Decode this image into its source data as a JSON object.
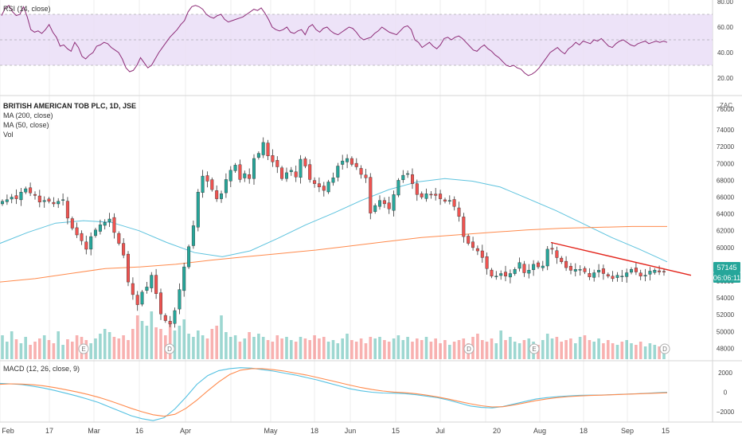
{
  "symbol_title": "BRITISH AMERICAN TOB PLC, 1D, JSE",
  "currency": "ZAC",
  "indicators": {
    "rsi_label": "RSI (14, close)",
    "ma200_label": "MA (200, close)",
    "ma50_label": "MA (50, close)",
    "vol_label": "Vol",
    "macd_label": "MACD (12, 26, close, 9)"
  },
  "last_price": "57145",
  "countdown": "06:06:11",
  "colors": {
    "up": "#26a69a",
    "down": "#ef5350",
    "ma200": "#ff8a4c",
    "ma50": "#5ec3de",
    "rsi": "#8e2d78",
    "rsi_band": "#e9dcf6",
    "trendline": "#e3241b",
    "macd": "#54c1e2",
    "signal": "#ff8a4c",
    "grid": "#eeeeee"
  },
  "chart_data": [
    {
      "type": "line",
      "panel": "rsi",
      "ylim": [
        10,
        80
      ],
      "yticks": [
        "80.00",
        "60.00",
        "40.00",
        "20.00"
      ],
      "band": [
        30,
        70
      ],
      "series": [
        {
          "name": "RSI (14, close)",
          "x_start": "2020-01-27",
          "step": "trading-day",
          "values": [
            69,
            75,
            77,
            72,
            69,
            70,
            76,
            68,
            58,
            56,
            57,
            55,
            58,
            62,
            56,
            52,
            45,
            46,
            43,
            41,
            48,
            44,
            37,
            35,
            38,
            40,
            45,
            46,
            48,
            47,
            44,
            42,
            40,
            35,
            28,
            25,
            26,
            30,
            36,
            32,
            28,
            30,
            35,
            40,
            44,
            48,
            52,
            55,
            58,
            62,
            65,
            72,
            76,
            77,
            76,
            74,
            70,
            68,
            67,
            69,
            70,
            66,
            64,
            65,
            66,
            67,
            68,
            70,
            72,
            74,
            73,
            75,
            71,
            66,
            60,
            58,
            57,
            58,
            60,
            56,
            55,
            57,
            58,
            54,
            60,
            62,
            58,
            56,
            59,
            60,
            57,
            55,
            54,
            56,
            58,
            60,
            59,
            56,
            52,
            50,
            51,
            52,
            55,
            57,
            60,
            58,
            56,
            55,
            54,
            57,
            60,
            61,
            58,
            50,
            48,
            44,
            46,
            48,
            45,
            43,
            46,
            51,
            52,
            50,
            52,
            53,
            51,
            48,
            45,
            42,
            41,
            44,
            46,
            43,
            41,
            38,
            36,
            33,
            30,
            29,
            30,
            28,
            27,
            24,
            22,
            23,
            25,
            28,
            32,
            36,
            40,
            42,
            44,
            41,
            39,
            43,
            45,
            48,
            46,
            49,
            48,
            47,
            50,
            49,
            51,
            48,
            45,
            44,
            47,
            49,
            50,
            48,
            46,
            45,
            47,
            48,
            49,
            47,
            48,
            49,
            48,
            49,
            48
          ]
        }
      ]
    },
    {
      "type": "candlestick",
      "panel": "price",
      "ylim": [
        47000,
        76000
      ],
      "yticks": [
        76000,
        74000,
        72000,
        70000,
        68000,
        66000,
        64000,
        62000,
        60000,
        58000,
        56000,
        54000,
        52000,
        50000,
        48000
      ],
      "x_labels": [
        "Feb",
        "17",
        "Mar",
        "16",
        "Apr",
        "May",
        "18",
        "Jun",
        "15",
        "Jul",
        "20",
        "Aug",
        "18",
        "Sep",
        "15"
      ],
      "close": [
        65500,
        65700,
        66000,
        65800,
        66600,
        67000,
        66500,
        66200,
        65400,
        65600,
        65500,
        65200,
        65500,
        65700,
        63500,
        62300,
        61500,
        60800,
        59800,
        61300,
        62100,
        62700,
        63000,
        63400,
        61800,
        60500,
        59100,
        55900,
        54400,
        53200,
        54700,
        55300,
        56700,
        54500,
        52100,
        51300,
        50900,
        52500,
        55000,
        57700,
        60100,
        62600,
        66600,
        68500,
        67900,
        66900,
        65800,
        66400,
        68100,
        69200,
        69800,
        68100,
        68800,
        68200,
        70600,
        71200,
        72500,
        70900,
        70200,
        69600,
        68200,
        68900,
        69200,
        68400,
        70500,
        69700,
        68100,
        67600,
        67200,
        66800,
        67800,
        68300,
        69700,
        70300,
        70600,
        69900,
        69600,
        68700,
        68300,
        64100,
        65000,
        65600,
        65200,
        64600,
        66300,
        68000,
        68600,
        68800,
        67600,
        66300,
        66000,
        66400,
        66300,
        66200,
        65800,
        65500,
        65600,
        64900,
        63700,
        61300,
        60500,
        60000,
        59600,
        58800,
        57500,
        56600,
        56600,
        56900,
        56600,
        56900,
        57400,
        58200,
        57000,
        57300,
        58000,
        57700,
        57800,
        59800,
        59800,
        58800,
        58300,
        57600,
        57300,
        57400,
        57400,
        57100,
        56500,
        57000,
        57300,
        56900,
        56600,
        56300,
        56700,
        56600,
        57000,
        57400,
        57100,
        56600,
        56700,
        57200,
        57300,
        57100,
        57145
      ],
      "series": [
        {
          "name": "MA (50, close)",
          "values": [
            60500,
            61800,
            62900,
            63200,
            63000,
            62000,
            60600,
            59400,
            58900,
            59600,
            61100,
            62700,
            64100,
            65600,
            66900,
            67800,
            68200,
            67900,
            67200,
            65800,
            64400,
            62800,
            61200,
            59800,
            58300
          ]
        },
        {
          "name": "MA (200, close)",
          "values": [
            55900,
            56300,
            56900,
            57500,
            57700,
            58000,
            58500,
            58900,
            59300,
            59700,
            60200,
            60700,
            61200,
            61500,
            61800,
            62100,
            62300,
            62400,
            62500,
            62500
          ]
        }
      ],
      "trendline": [
        [
          0.4,
          "Aug 08"
        ],
        [
          1,
          "Sep 16"
        ]
      ],
      "events": [
        "E",
        "D",
        "D",
        "E",
        "D",
        "D",
        "E"
      ]
    },
    {
      "type": "bar",
      "panel": "volume",
      "series": [
        {
          "name": "Vol",
          "values": [
            30,
            22,
            35,
            25,
            20,
            28,
            18,
            22,
            26,
            30,
            24,
            20,
            35,
            18,
            25,
            22,
            30,
            28,
            24,
            20,
            26,
            32,
            38,
            34,
            28,
            26,
            30,
            24,
            38,
            55,
            48,
            42,
            60,
            40,
            38,
            30,
            44,
            36,
            42,
            50,
            32,
            28,
            36,
            30,
            26,
            38,
            42,
            55,
            34,
            28,
            30,
            22,
            26,
            34,
            28,
            32,
            28,
            24,
            22,
            30,
            26,
            28,
            24,
            22,
            28,
            26,
            24,
            30,
            26,
            28,
            22,
            24,
            20,
            26,
            32,
            24,
            22,
            26,
            20,
            28,
            26,
            28,
            24,
            22,
            26,
            30,
            24,
            28,
            22,
            26,
            24,
            28,
            22,
            26,
            20,
            24,
            18,
            22,
            24,
            26,
            20,
            28,
            32,
            24,
            22,
            26,
            20,
            36,
            24,
            28,
            22,
            20,
            24,
            26,
            22,
            18,
            24,
            32,
            26,
            28,
            22,
            24,
            26,
            20,
            28,
            30,
            24,
            22,
            26,
            20,
            24,
            20,
            18,
            22,
            24,
            20,
            18,
            22,
            16,
            20,
            18,
            16,
            14
          ]
        }
      ]
    },
    {
      "type": "line",
      "panel": "macd",
      "ylim": [
        -2800,
        2800
      ],
      "yticks": [
        "2000",
        "0",
        "−2000"
      ],
      "series": [
        {
          "name": "MACD",
          "values": [
            900,
            850,
            780,
            620,
            420,
            180,
            -100,
            -380,
            -700,
            -1050,
            -1500,
            -1950,
            -2400,
            -2700,
            -2900,
            -2600,
            -1700,
            -500,
            800,
            1700,
            2200,
            2400,
            2500,
            2450,
            2300,
            2150,
            1950,
            1750,
            1500,
            1250,
            950,
            650,
            350,
            150,
            0,
            -80,
            -100,
            -150,
            -250,
            -400,
            -550,
            -800,
            -1100,
            -1400,
            -1550,
            -1600,
            -1450,
            -1200,
            -950,
            -700,
            -550,
            -450,
            -380,
            -320,
            -300,
            -290,
            -240,
            -200,
            -160,
            -110,
            -60,
            -10
          ]
        },
        {
          "name": "Signal",
          "values": [
            800,
            850,
            830,
            760,
            640,
            470,
            260,
            30,
            -220,
            -510,
            -860,
            -1250,
            -1650,
            -2000,
            -2300,
            -2450,
            -2250,
            -1650,
            -800,
            150,
            1050,
            1800,
            2250,
            2400,
            2400,
            2300,
            2150,
            1950,
            1750,
            1500,
            1250,
            980,
            720,
            480,
            280,
            120,
            20,
            -50,
            -150,
            -300,
            -480,
            -700,
            -950,
            -1180,
            -1380,
            -1500,
            -1480,
            -1300,
            -1080,
            -860,
            -680,
            -540,
            -450,
            -380,
            -330,
            -300,
            -260,
            -220,
            -180,
            -140,
            -100,
            -60
          ]
        }
      ]
    }
  ]
}
